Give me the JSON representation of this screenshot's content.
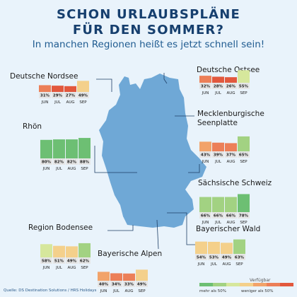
{
  "header": {
    "title_line1": "SCHON URLAUBSPLÄNE",
    "title_line2": "FÜR DEN SOMMER?",
    "subtitle": "In manchen Regionen heißt es jetzt schnell sein!"
  },
  "source": "Quelle: DS Destination Solutions / HRS Holidays",
  "legend": {
    "title": "Verfügbar",
    "label_left": "mehr als 50%",
    "label_right": "weniger als 50%",
    "colors": [
      "#6dbf73",
      "#a2d282",
      "#d6e79c",
      "#f4d08b",
      "#f2a36a",
      "#ec7f58",
      "#e2583d"
    ]
  },
  "colors": {
    "title": "#163f6e",
    "subtitle": "#1f5b90",
    "map_fill": "#6fa8d6",
    "background": "#e9f3fb"
  },
  "chart_data": {
    "type": "bar",
    "categories": [
      "JUN",
      "JUL",
      "AUG",
      "SEP"
    ],
    "value_unit": "%",
    "ylim": [
      0,
      100
    ],
    "regions": [
      {
        "name": "Deutsche Nordsee",
        "values": [
          31,
          29,
          27,
          49
        ]
      },
      {
        "name": "Deutsche Ostsee",
        "values": [
          32,
          28,
          26,
          55
        ]
      },
      {
        "name": "Rhön",
        "values": [
          80,
          82,
          82,
          88
        ]
      },
      {
        "name": "Mecklenburgische Seenplatte",
        "name_lines": [
          "Mecklenburgische",
          "Seenplatte"
        ],
        "values": [
          43,
          39,
          37,
          65
        ]
      },
      {
        "name": "Sächsische Schweiz",
        "values": [
          66,
          66,
          66,
          78
        ]
      },
      {
        "name": "Region Bodensee",
        "values": [
          58,
          51,
          49,
          62
        ]
      },
      {
        "name": "Bayerischer Wald",
        "values": [
          54,
          53,
          49,
          63
        ]
      },
      {
        "name": "Bayerische Alpen",
        "values": [
          40,
          34,
          33,
          49
        ]
      }
    ]
  }
}
